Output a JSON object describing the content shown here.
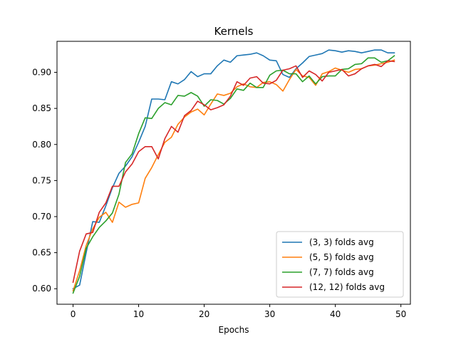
{
  "chart_data": {
    "type": "line",
    "title": "Kernels",
    "xlabel": "Epochs",
    "ylabel": "",
    "xlim": [
      -2.45,
      51.45
    ],
    "ylim": [
      0.5785,
      0.943
    ],
    "xticks": [
      0,
      10,
      20,
      30,
      40,
      50
    ],
    "yticks": [
      0.6,
      0.65,
      0.7,
      0.75,
      0.8,
      0.85,
      0.9
    ],
    "ytick_labels": [
      "0.60",
      "0.65",
      "0.70",
      "0.75",
      "0.80",
      "0.85",
      "0.90"
    ],
    "grid": false,
    "legend_position": "lower-right",
    "series": [
      {
        "name": "(3, 3) folds avg",
        "color": "#1f77b4",
        "x": [
          0,
          1,
          2,
          3,
          4,
          5,
          6,
          7,
          8,
          9,
          10,
          11,
          12,
          13,
          14,
          15,
          16,
          17,
          18,
          19,
          20,
          21,
          22,
          23,
          24,
          25,
          26,
          27,
          28,
          29,
          30,
          31,
          32,
          33,
          34,
          35,
          36,
          37,
          38,
          39,
          40,
          41,
          42,
          43,
          44,
          45,
          46,
          47,
          48,
          49
        ],
        "values": [
          0.6,
          0.605,
          0.65,
          0.693,
          0.692,
          0.715,
          0.74,
          0.76,
          0.77,
          0.783,
          0.803,
          0.825,
          0.863,
          0.863,
          0.862,
          0.887,
          0.884,
          0.89,
          0.901,
          0.894,
          0.898,
          0.898,
          0.909,
          0.917,
          0.914,
          0.923,
          0.924,
          0.925,
          0.927,
          0.923,
          0.917,
          0.916,
          0.897,
          0.893,
          0.905,
          0.913,
          0.922,
          0.924,
          0.926,
          0.931,
          0.93,
          0.928,
          0.93,
          0.929,
          0.927,
          0.929,
          0.931,
          0.931,
          0.927,
          0.927
        ]
      },
      {
        "name": "(5, 5) folds avg",
        "color": "#ff7f0e",
        "x": [
          0,
          1,
          2,
          3,
          4,
          5,
          6,
          7,
          8,
          9,
          10,
          11,
          12,
          13,
          14,
          15,
          16,
          17,
          18,
          19,
          20,
          21,
          22,
          23,
          24,
          25,
          26,
          27,
          28,
          29,
          30,
          31,
          32,
          33,
          34,
          35,
          36,
          37,
          38,
          39,
          40,
          41,
          42,
          43,
          44,
          45,
          46,
          47,
          48,
          49
        ],
        "values": [
          0.597,
          0.625,
          0.66,
          0.683,
          0.699,
          0.706,
          0.692,
          0.72,
          0.713,
          0.717,
          0.719,
          0.753,
          0.768,
          0.786,
          0.803,
          0.81,
          0.828,
          0.838,
          0.845,
          0.849,
          0.841,
          0.856,
          0.87,
          0.868,
          0.871,
          0.88,
          0.884,
          0.88,
          0.879,
          0.886,
          0.887,
          0.883,
          0.874,
          0.89,
          0.904,
          0.895,
          0.893,
          0.882,
          0.898,
          0.901,
          0.906,
          0.903,
          0.9,
          0.904,
          0.905,
          0.909,
          0.91,
          0.912,
          0.914,
          0.917
        ]
      },
      {
        "name": "(7, 7) folds avg",
        "color": "#2ca02c",
        "x": [
          0,
          1,
          2,
          3,
          4,
          5,
          6,
          7,
          8,
          9,
          10,
          11,
          12,
          13,
          14,
          15,
          16,
          17,
          18,
          19,
          20,
          21,
          22,
          23,
          24,
          25,
          26,
          27,
          28,
          29,
          30,
          31,
          32,
          33,
          34,
          35,
          36,
          37,
          38,
          39,
          40,
          41,
          42,
          43,
          44,
          45,
          46,
          47,
          48,
          49
        ],
        "values": [
          0.594,
          0.617,
          0.656,
          0.672,
          0.685,
          0.694,
          0.705,
          0.731,
          0.775,
          0.787,
          0.815,
          0.837,
          0.836,
          0.85,
          0.858,
          0.855,
          0.868,
          0.867,
          0.872,
          0.867,
          0.853,
          0.862,
          0.861,
          0.856,
          0.864,
          0.877,
          0.875,
          0.885,
          0.879,
          0.879,
          0.896,
          0.902,
          0.903,
          0.898,
          0.898,
          0.887,
          0.895,
          0.884,
          0.894,
          0.895,
          0.895,
          0.904,
          0.905,
          0.911,
          0.912,
          0.92,
          0.92,
          0.914,
          0.916,
          0.923
        ]
      },
      {
        "name": "(12, 12) folds avg",
        "color": "#d62728",
        "x": [
          0,
          1,
          2,
          3,
          4,
          5,
          6,
          7,
          8,
          9,
          10,
          11,
          12,
          13,
          14,
          15,
          16,
          17,
          18,
          19,
          20,
          21,
          22,
          23,
          24,
          25,
          26,
          27,
          28,
          29,
          30,
          31,
          32,
          33,
          34,
          35,
          36,
          37,
          38,
          39,
          40,
          41,
          42,
          43,
          44,
          45,
          46,
          47,
          48,
          49
        ],
        "values": [
          0.609,
          0.652,
          0.676,
          0.678,
          0.706,
          0.719,
          0.742,
          0.742,
          0.762,
          0.773,
          0.79,
          0.797,
          0.797,
          0.78,
          0.808,
          0.825,
          0.817,
          0.84,
          0.847,
          0.86,
          0.855,
          0.848,
          0.851,
          0.855,
          0.867,
          0.887,
          0.882,
          0.892,
          0.894,
          0.885,
          0.884,
          0.889,
          0.903,
          0.905,
          0.909,
          0.893,
          0.902,
          0.897,
          0.888,
          0.9,
          0.902,
          0.904,
          0.895,
          0.898,
          0.905,
          0.909,
          0.911,
          0.908,
          0.916,
          0.915
        ]
      }
    ]
  }
}
